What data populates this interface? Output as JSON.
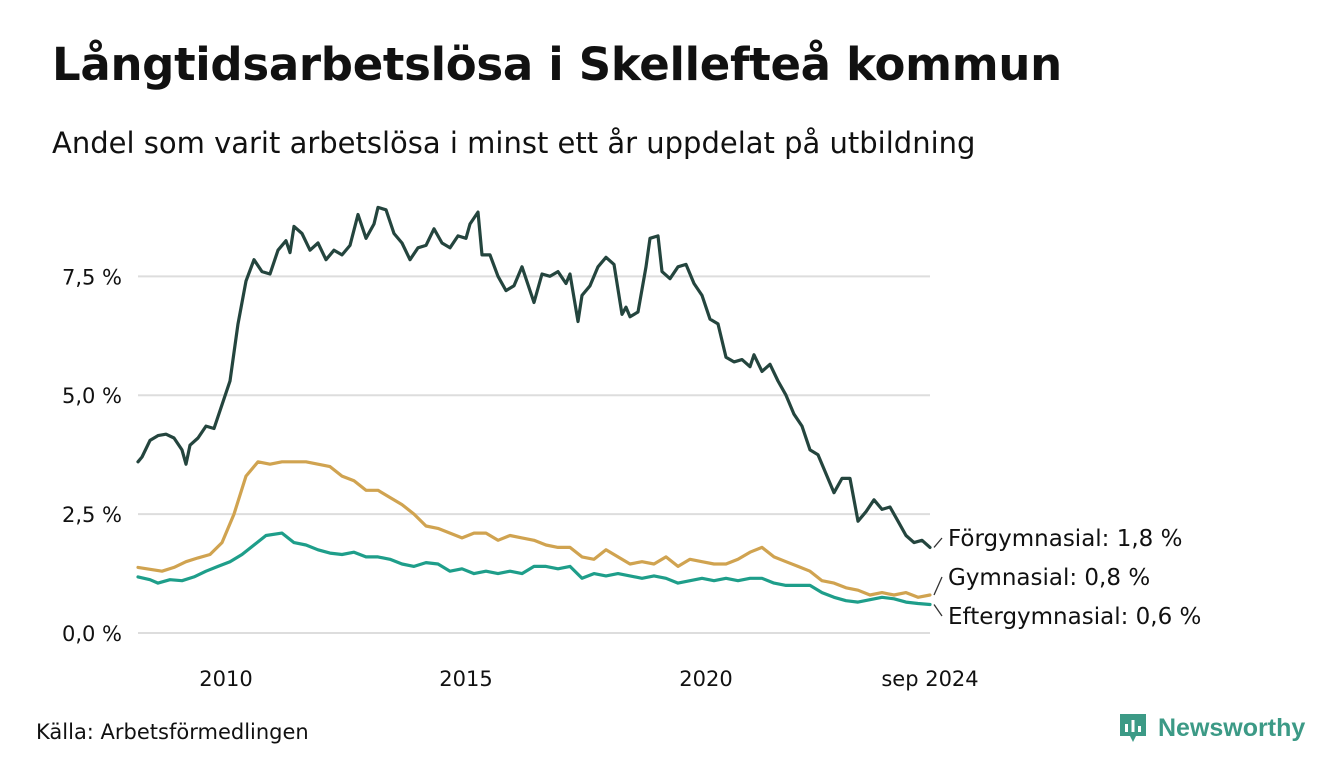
{
  "header": {
    "title": "Långtidsarbetslösa i Skellefteå kommun",
    "subtitle": "Andel som varit arbetslösa i minst ett år uppdelat på utbildning"
  },
  "footer": {
    "source": "Källa: Arbetsförmedlingen",
    "brand": "Newsworthy",
    "brand_color": "#3c9a86"
  },
  "chart_data": {
    "type": "line",
    "x_range": [
      "2008-03",
      "2024-09"
    ],
    "x_ticks": [
      {
        "label": "2010",
        "t": "2010-01"
      },
      {
        "label": "2015",
        "t": "2015-01"
      },
      {
        "label": "2020",
        "t": "2020-01"
      },
      {
        "label": "sep 2024",
        "t": "2024-09"
      }
    ],
    "y_ticks": [
      {
        "v": 0,
        "label": "0,0 %"
      },
      {
        "v": 2.5,
        "label": "2,5 %"
      },
      {
        "v": 5,
        "label": "5,0 %"
      },
      {
        "v": 7.5,
        "label": "7,5 %"
      }
    ],
    "ylim": [
      0,
      9
    ],
    "grid": "horizontal",
    "series": [
      {
        "name": "Förgymnasial",
        "end_label": "Förgymnasial: 1,8 %",
        "color": "#24453e",
        "points": [
          [
            "2008-03",
            3.6
          ],
          [
            "2008-04",
            3.7
          ],
          [
            "2008-06",
            4.05
          ],
          [
            "2008-08",
            4.15
          ],
          [
            "2008-10",
            4.18
          ],
          [
            "2008-12",
            4.1
          ],
          [
            "2009-02",
            3.85
          ],
          [
            "2009-03",
            3.55
          ],
          [
            "2009-04",
            3.95
          ],
          [
            "2009-06",
            4.1
          ],
          [
            "2009-08",
            4.35
          ],
          [
            "2009-10",
            4.3
          ],
          [
            "2009-12",
            4.8
          ],
          [
            "2010-02",
            5.3
          ],
          [
            "2010-04",
            6.5
          ],
          [
            "2010-06",
            7.4
          ],
          [
            "2010-08",
            7.85
          ],
          [
            "2010-10",
            7.6
          ],
          [
            "2010-12",
            7.55
          ],
          [
            "2011-02",
            8.05
          ],
          [
            "2011-04",
            8.25
          ],
          [
            "2011-05",
            8.0
          ],
          [
            "2011-06",
            8.55
          ],
          [
            "2011-08",
            8.4
          ],
          [
            "2011-10",
            8.05
          ],
          [
            "2011-12",
            8.2
          ],
          [
            "2012-02",
            7.85
          ],
          [
            "2012-04",
            8.05
          ],
          [
            "2012-06",
            7.95
          ],
          [
            "2012-08",
            8.15
          ],
          [
            "2012-10",
            8.8
          ],
          [
            "2012-12",
            8.3
          ],
          [
            "2013-02",
            8.6
          ],
          [
            "2013-03",
            8.95
          ],
          [
            "2013-05",
            8.9
          ],
          [
            "2013-07",
            8.4
          ],
          [
            "2013-09",
            8.2
          ],
          [
            "2013-11",
            7.85
          ],
          [
            "2014-01",
            8.1
          ],
          [
            "2014-03",
            8.15
          ],
          [
            "2014-05",
            8.5
          ],
          [
            "2014-07",
            8.2
          ],
          [
            "2014-09",
            8.1
          ],
          [
            "2014-11",
            8.35
          ],
          [
            "2015-01",
            8.3
          ],
          [
            "2015-02",
            8.6
          ],
          [
            "2015-04",
            8.85
          ],
          [
            "2015-05",
            7.95
          ],
          [
            "2015-07",
            7.95
          ],
          [
            "2015-09",
            7.5
          ],
          [
            "2015-11",
            7.2
          ],
          [
            "2016-01",
            7.3
          ],
          [
            "2016-03",
            7.7
          ],
          [
            "2016-05",
            7.2
          ],
          [
            "2016-06",
            6.95
          ],
          [
            "2016-08",
            7.55
          ],
          [
            "2016-10",
            7.5
          ],
          [
            "2016-12",
            7.6
          ],
          [
            "2017-02",
            7.35
          ],
          [
            "2017-03",
            7.55
          ],
          [
            "2017-05",
            6.55
          ],
          [
            "2017-06",
            7.1
          ],
          [
            "2017-08",
            7.3
          ],
          [
            "2017-10",
            7.7
          ],
          [
            "2017-12",
            7.9
          ],
          [
            "2018-02",
            7.75
          ],
          [
            "2018-04",
            6.7
          ],
          [
            "2018-05",
            6.85
          ],
          [
            "2018-06",
            6.65
          ],
          [
            "2018-08",
            6.75
          ],
          [
            "2018-10",
            7.7
          ],
          [
            "2018-11",
            8.3
          ],
          [
            "2019-01",
            8.35
          ],
          [
            "2019-02",
            7.6
          ],
          [
            "2019-04",
            7.45
          ],
          [
            "2019-06",
            7.7
          ],
          [
            "2019-08",
            7.75
          ],
          [
            "2019-10",
            7.35
          ],
          [
            "2019-12",
            7.1
          ],
          [
            "2020-02",
            6.6
          ],
          [
            "2020-04",
            6.5
          ],
          [
            "2020-06",
            5.8
          ],
          [
            "2020-08",
            5.7
          ],
          [
            "2020-10",
            5.75
          ],
          [
            "2020-12",
            5.6
          ],
          [
            "2021-01",
            5.85
          ],
          [
            "2021-03",
            5.5
          ],
          [
            "2021-05",
            5.65
          ],
          [
            "2021-07",
            5.3
          ],
          [
            "2021-09",
            5.0
          ],
          [
            "2021-11",
            4.6
          ],
          [
            "2022-01",
            4.35
          ],
          [
            "2022-03",
            3.85
          ],
          [
            "2022-05",
            3.75
          ],
          [
            "2022-07",
            3.35
          ],
          [
            "2022-09",
            2.95
          ],
          [
            "2022-11",
            3.25
          ],
          [
            "2023-01",
            3.25
          ],
          [
            "2023-03",
            2.35
          ],
          [
            "2023-05",
            2.55
          ],
          [
            "2023-07",
            2.8
          ],
          [
            "2023-09",
            2.6
          ],
          [
            "2023-11",
            2.65
          ],
          [
            "2024-01",
            2.35
          ],
          [
            "2024-03",
            2.05
          ],
          [
            "2024-05",
            1.9
          ],
          [
            "2024-07",
            1.95
          ],
          [
            "2024-09",
            1.8
          ]
        ]
      },
      {
        "name": "Gymnasial",
        "end_label": "Gymnasial: 0,8 %",
        "color": "#d0a350",
        "points": [
          [
            "2008-03",
            1.38
          ],
          [
            "2008-06",
            1.34
          ],
          [
            "2008-09",
            1.3
          ],
          [
            "2008-12",
            1.38
          ],
          [
            "2009-03",
            1.5
          ],
          [
            "2009-06",
            1.58
          ],
          [
            "2009-09",
            1.65
          ],
          [
            "2009-12",
            1.9
          ],
          [
            "2010-03",
            2.5
          ],
          [
            "2010-06",
            3.3
          ],
          [
            "2010-09",
            3.6
          ],
          [
            "2010-12",
            3.55
          ],
          [
            "2011-03",
            3.6
          ],
          [
            "2011-06",
            3.6
          ],
          [
            "2011-09",
            3.6
          ],
          [
            "2011-12",
            3.55
          ],
          [
            "2012-03",
            3.5
          ],
          [
            "2012-06",
            3.3
          ],
          [
            "2012-09",
            3.2
          ],
          [
            "2012-12",
            3.0
          ],
          [
            "2013-03",
            3.0
          ],
          [
            "2013-06",
            2.85
          ],
          [
            "2013-09",
            2.7
          ],
          [
            "2013-12",
            2.5
          ],
          [
            "2014-03",
            2.25
          ],
          [
            "2014-06",
            2.2
          ],
          [
            "2014-09",
            2.1
          ],
          [
            "2014-12",
            2.0
          ],
          [
            "2015-03",
            2.1
          ],
          [
            "2015-06",
            2.1
          ],
          [
            "2015-09",
            1.95
          ],
          [
            "2015-12",
            2.05
          ],
          [
            "2016-03",
            2.0
          ],
          [
            "2016-06",
            1.95
          ],
          [
            "2016-09",
            1.85
          ],
          [
            "2016-12",
            1.8
          ],
          [
            "2017-03",
            1.8
          ],
          [
            "2017-06",
            1.6
          ],
          [
            "2017-09",
            1.55
          ],
          [
            "2017-12",
            1.75
          ],
          [
            "2018-03",
            1.6
          ],
          [
            "2018-06",
            1.45
          ],
          [
            "2018-09",
            1.5
          ],
          [
            "2018-12",
            1.45
          ],
          [
            "2019-03",
            1.6
          ],
          [
            "2019-06",
            1.4
          ],
          [
            "2019-09",
            1.55
          ],
          [
            "2019-12",
            1.5
          ],
          [
            "2020-03",
            1.45
          ],
          [
            "2020-06",
            1.45
          ],
          [
            "2020-09",
            1.55
          ],
          [
            "2020-12",
            1.7
          ],
          [
            "2021-03",
            1.8
          ],
          [
            "2021-06",
            1.6
          ],
          [
            "2021-09",
            1.5
          ],
          [
            "2021-12",
            1.4
          ],
          [
            "2022-03",
            1.3
          ],
          [
            "2022-06",
            1.1
          ],
          [
            "2022-09",
            1.05
          ],
          [
            "2022-12",
            0.95
          ],
          [
            "2023-03",
            0.9
          ],
          [
            "2023-06",
            0.8
          ],
          [
            "2023-09",
            0.85
          ],
          [
            "2023-12",
            0.8
          ],
          [
            "2024-03",
            0.85
          ],
          [
            "2024-06",
            0.75
          ],
          [
            "2024-09",
            0.8
          ]
        ]
      },
      {
        "name": "Eftergymnasial",
        "end_label": "Eftergymnasial: 0,6 %",
        "color": "#1e9e8a",
        "points": [
          [
            "2008-03",
            1.18
          ],
          [
            "2008-06",
            1.12
          ],
          [
            "2008-08",
            1.05
          ],
          [
            "2008-11",
            1.12
          ],
          [
            "2009-02",
            1.1
          ],
          [
            "2009-05",
            1.18
          ],
          [
            "2009-08",
            1.3
          ],
          [
            "2009-11",
            1.4
          ],
          [
            "2010-02",
            1.5
          ],
          [
            "2010-05",
            1.65
          ],
          [
            "2010-08",
            1.85
          ],
          [
            "2010-11",
            2.05
          ],
          [
            "2011-03",
            2.1
          ],
          [
            "2011-06",
            1.9
          ],
          [
            "2011-09",
            1.85
          ],
          [
            "2011-12",
            1.75
          ],
          [
            "2012-03",
            1.68
          ],
          [
            "2012-06",
            1.65
          ],
          [
            "2012-09",
            1.7
          ],
          [
            "2012-12",
            1.6
          ],
          [
            "2013-03",
            1.6
          ],
          [
            "2013-06",
            1.55
          ],
          [
            "2013-09",
            1.45
          ],
          [
            "2013-12",
            1.4
          ],
          [
            "2014-03",
            1.48
          ],
          [
            "2014-06",
            1.45
          ],
          [
            "2014-09",
            1.3
          ],
          [
            "2014-12",
            1.35
          ],
          [
            "2015-03",
            1.25
          ],
          [
            "2015-06",
            1.3
          ],
          [
            "2015-09",
            1.25
          ],
          [
            "2015-12",
            1.3
          ],
          [
            "2016-03",
            1.25
          ],
          [
            "2016-06",
            1.4
          ],
          [
            "2016-09",
            1.4
          ],
          [
            "2016-12",
            1.35
          ],
          [
            "2017-03",
            1.4
          ],
          [
            "2017-06",
            1.15
          ],
          [
            "2017-09",
            1.25
          ],
          [
            "2017-12",
            1.2
          ],
          [
            "2018-03",
            1.25
          ],
          [
            "2018-06",
            1.2
          ],
          [
            "2018-09",
            1.15
          ],
          [
            "2018-12",
            1.2
          ],
          [
            "2019-03",
            1.15
          ],
          [
            "2019-06",
            1.05
          ],
          [
            "2019-09",
            1.1
          ],
          [
            "2019-12",
            1.15
          ],
          [
            "2020-03",
            1.1
          ],
          [
            "2020-06",
            1.15
          ],
          [
            "2020-09",
            1.1
          ],
          [
            "2020-12",
            1.15
          ],
          [
            "2021-03",
            1.15
          ],
          [
            "2021-06",
            1.05
          ],
          [
            "2021-09",
            1.0
          ],
          [
            "2021-12",
            1.0
          ],
          [
            "2022-03",
            1.0
          ],
          [
            "2022-06",
            0.85
          ],
          [
            "2022-09",
            0.75
          ],
          [
            "2022-12",
            0.68
          ],
          [
            "2023-03",
            0.65
          ],
          [
            "2023-06",
            0.7
          ],
          [
            "2023-09",
            0.75
          ],
          [
            "2023-12",
            0.72
          ],
          [
            "2024-03",
            0.65
          ],
          [
            "2024-06",
            0.62
          ],
          [
            "2024-09",
            0.6
          ]
        ]
      }
    ]
  }
}
